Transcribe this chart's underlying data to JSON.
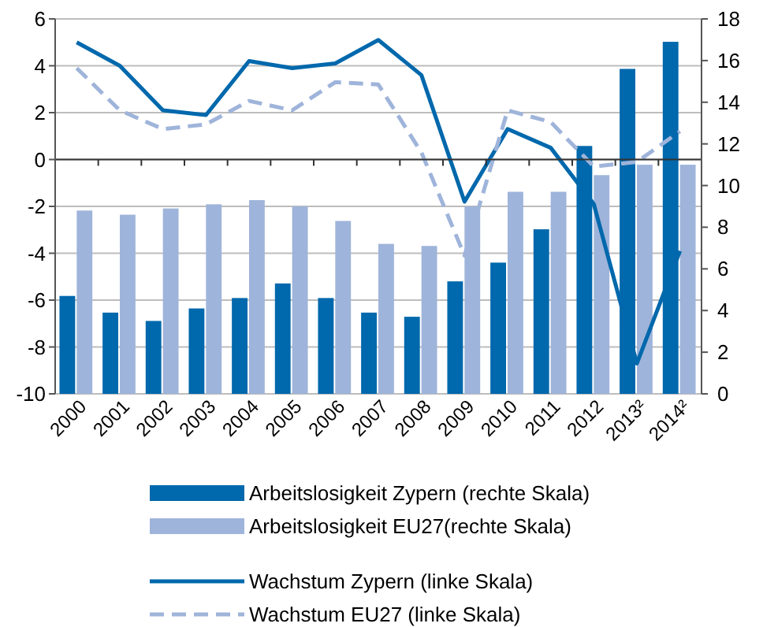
{
  "chart_data": {
    "type": "bar",
    "categories": [
      "2000",
      "2001",
      "2002",
      "2003",
      "2004",
      "2005",
      "2006",
      "2007",
      "2008",
      "2009",
      "2010",
      "2011",
      "2012",
      "2013²",
      "2014²"
    ],
    "ylim": [
      -10,
      6
    ],
    "yticks": [
      -10,
      -8,
      -6,
      -4,
      -2,
      0,
      2,
      4,
      6
    ],
    "y2lim": [
      0,
      18
    ],
    "y2ticks": [
      0,
      2,
      4,
      6,
      8,
      10,
      12,
      14,
      16,
      18
    ],
    "grid": "y",
    "legend": "bottom",
    "series": [
      {
        "name": "Arbeitslosigkeit Zypern (rechte Skala)",
        "axis": "y2",
        "color": "#0068ac",
        "values": [
          4.7,
          3.9,
          3.5,
          4.1,
          4.6,
          5.3,
          4.6,
          3.9,
          3.7,
          5.4,
          6.3,
          7.9,
          11.9,
          15.6,
          16.9
        ]
      },
      {
        "name": "Arbeitslosigkeit EU27(rechte Skala)",
        "axis": "y2",
        "color": "#9fb4da",
        "values": [
          8.8,
          8.6,
          8.9,
          9.1,
          9.3,
          9.0,
          8.3,
          7.2,
          7.1,
          9.0,
          9.7,
          9.7,
          10.5,
          11.0,
          11.0
        ]
      },
      {
        "name": "Wachstum Zypern (linke Skala)",
        "type": "line",
        "color": "#0068ac",
        "line_style": "solid",
        "values": [
          5.0,
          4.0,
          2.1,
          1.9,
          4.2,
          3.9,
          4.1,
          5.1,
          3.6,
          -1.8,
          1.3,
          0.5,
          -1.9,
          -8.7,
          -3.9
        ]
      },
      {
        "name": "Wachstum EU27 (linke Skala)",
        "type": "line",
        "color": "#9fb4da",
        "line_style": "dashed",
        "values": [
          3.9,
          2.1,
          1.3,
          1.5,
          2.5,
          2.1,
          3.3,
          3.2,
          0.3,
          -4.1,
          2.1,
          1.6,
          -0.3,
          -0.1,
          1.2
        ]
      }
    ]
  }
}
